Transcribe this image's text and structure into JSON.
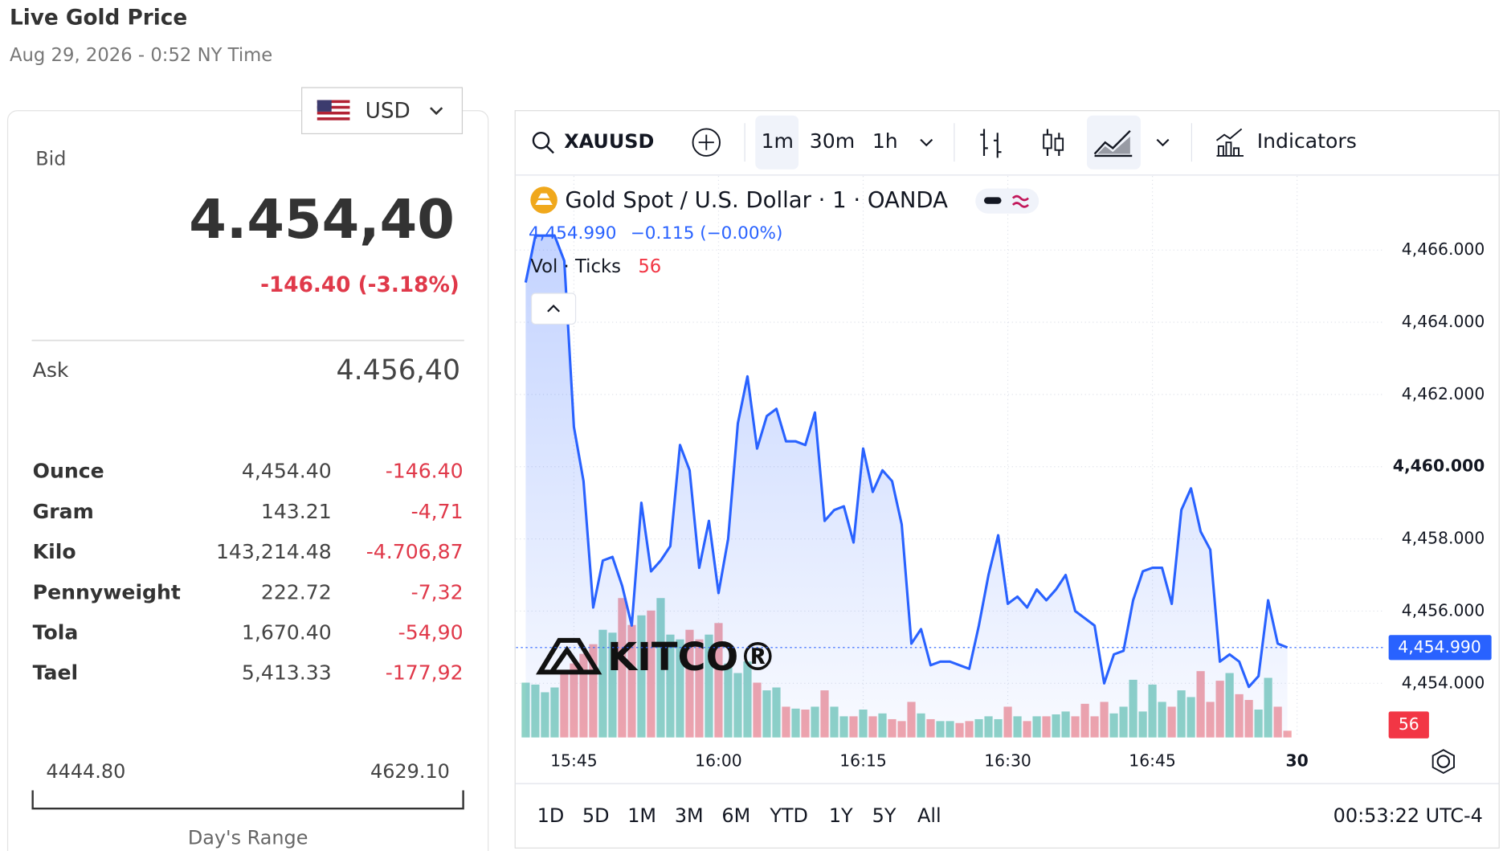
{
  "header": {
    "title": "Live Gold Price",
    "timestamp": "Aug 29, 2026 - 0:52 NY Time",
    "currency": "USD"
  },
  "quote": {
    "bid_label": "Bid",
    "bid": "4.454,40",
    "change": "-146.40 (-3.18%)",
    "ask_label": "Ask",
    "ask": "4.456,40"
  },
  "table": {
    "rows": [
      [
        "Ounce",
        "4,454.40",
        "-146.40"
      ],
      [
        "Gram",
        "143.21",
        "-4,71"
      ],
      [
        "Kilo",
        "143,214.48",
        "-4.706,87"
      ],
      [
        "Pennyweight",
        "222.72",
        "-7,32"
      ],
      [
        "Tola",
        "1,670.40",
        "-54,90"
      ],
      [
        "Tael",
        "5,413.33",
        "-177,92"
      ]
    ]
  },
  "range": {
    "low": "4444.80",
    "high": "4629.10",
    "label": "Day's Range"
  },
  "toolbar": {
    "symbol": "XAUUSD",
    "intervals": [
      "1m",
      "30m",
      "1h"
    ],
    "indicators": "Indicators"
  },
  "chart_data": {
    "type": "line",
    "title": "Gold Spot / U.S. Dollar · 1 · OANDA",
    "legend_change": "−0.115 (−0.00%)",
    "last_value_label": "4,454.990",
    "volume_label": "Vol · Ticks",
    "watermark": "KITCO®",
    "color": "#2962ff",
    "x": [
      "15:40",
      "15:41",
      "15:42",
      "15:43",
      "15:44",
      "15:45",
      "15:46",
      "15:47",
      "15:48",
      "15:49",
      "15:50",
      "15:51",
      "15:52",
      "15:53",
      "15:54",
      "15:55",
      "15:56",
      "15:57",
      "15:58",
      "15:59",
      "16:00",
      "16:01",
      "16:02",
      "16:03",
      "16:04",
      "16:05",
      "16:06",
      "16:07",
      "16:08",
      "16:09",
      "16:10",
      "16:11",
      "16:12",
      "16:13",
      "16:14",
      "16:15",
      "16:16",
      "16:17",
      "16:18",
      "16:19",
      "16:20",
      "16:21",
      "16:22",
      "16:23",
      "16:24",
      "16:25",
      "16:26",
      "16:27",
      "16:28",
      "16:29",
      "16:30",
      "16:31",
      "16:32",
      "16:33",
      "16:34",
      "16:35",
      "16:36",
      "16:37",
      "16:38",
      "16:39",
      "16:40",
      "16:41",
      "16:42",
      "16:43",
      "16:44",
      "16:45",
      "16:46",
      "16:47",
      "16:48",
      "16:49",
      "16:50",
      "16:51",
      "16:52",
      "16:53",
      "16:54",
      "16:55",
      "16:56",
      "16:57",
      "16:58",
      "16:59"
    ],
    "values": [
      4465.1,
      4466.4,
      4466.4,
      4466.4,
      4465.7,
      4461.1,
      4459.6,
      4456.1,
      4457.4,
      4457.5,
      4456.7,
      4455.6,
      4459.0,
      4457.1,
      4457.4,
      4457.8,
      4460.6,
      4459.9,
      4457.2,
      4458.5,
      4456.5,
      4458.0,
      4461.2,
      4462.5,
      4460.5,
      4461.4,
      4461.6,
      4460.7,
      4460.7,
      4460.6,
      4461.5,
      4458.5,
      4458.8,
      4458.9,
      4457.9,
      4460.5,
      4459.3,
      4459.9,
      4459.6,
      4458.4,
      4455.1,
      4455.5,
      4454.5,
      4454.6,
      4454.6,
      4454.5,
      4454.4,
      4455.6,
      4457.0,
      4458.1,
      4456.2,
      4456.4,
      4456.1,
      4456.6,
      4456.3,
      4456.6,
      4457.0,
      4456.0,
      4455.8,
      4455.6,
      4454.0,
      4454.8,
      4454.9,
      4456.3,
      4457.1,
      4457.2,
      4457.2,
      4456.2,
      4458.8,
      4459.4,
      4458.2,
      4457.7,
      4454.6,
      4454.8,
      4454.6,
      4453.9,
      4454.2,
      4456.3,
      4455.1,
      4454.99
    ],
    "volume": {
      "up_color": "#8fd3c6",
      "down_color": "#f2a5ab",
      "ylim": [
        0,
        4672
      ],
      "values": [
        456,
        440,
        376,
        416,
        536,
        616,
        696,
        776,
        896,
        872,
        1160,
        936,
        1016,
        1056,
        1160,
        856,
        816,
        896,
        816,
        856,
        952,
        616,
        536,
        632,
        456,
        392,
        416,
        256,
        240,
        232,
        256,
        392,
        256,
        176,
        176,
        232,
        176,
        200,
        152,
        136,
        296,
        200,
        152,
        136,
        136,
        120,
        136,
        152,
        176,
        152,
        256,
        176,
        136,
        176,
        176,
        192,
        216,
        176,
        280,
        176,
        296,
        200,
        256,
        480,
        216,
        440,
        296,
        256,
        392,
        336,
        552,
        296,
        472,
        536,
        360,
        312,
        232,
        496,
        256,
        56
      ]
    },
    "xlim": [
      "15:39",
      "17:09"
    ],
    "xticks": [
      "15:45",
      "16:00",
      "16:15",
      "16:30",
      "16:45",
      {
        "value": "17:00",
        "label": "30"
      }
    ],
    "ylim": [
      4452.5,
      4468.05
    ],
    "yticks": [
      {
        "value": 4454,
        "label": "4,454.000"
      },
      {
        "value": 4456,
        "label": "4,456.000"
      },
      {
        "value": 4458,
        "label": "4,458.000"
      },
      {
        "value": 4460,
        "label": "4,460.000"
      },
      {
        "value": 4462,
        "label": "4,462.000"
      },
      {
        "value": 4464,
        "label": "4,464.000"
      },
      {
        "value": 4466,
        "label": "4,466.000"
      }
    ],
    "grid": true
  },
  "footer": {
    "periods": [
      "1D",
      "5D",
      "1M",
      "3M",
      "6M",
      "YTD",
      "1Y",
      "5Y",
      "All"
    ],
    "clock": "00:53:22 UTC-4"
  }
}
